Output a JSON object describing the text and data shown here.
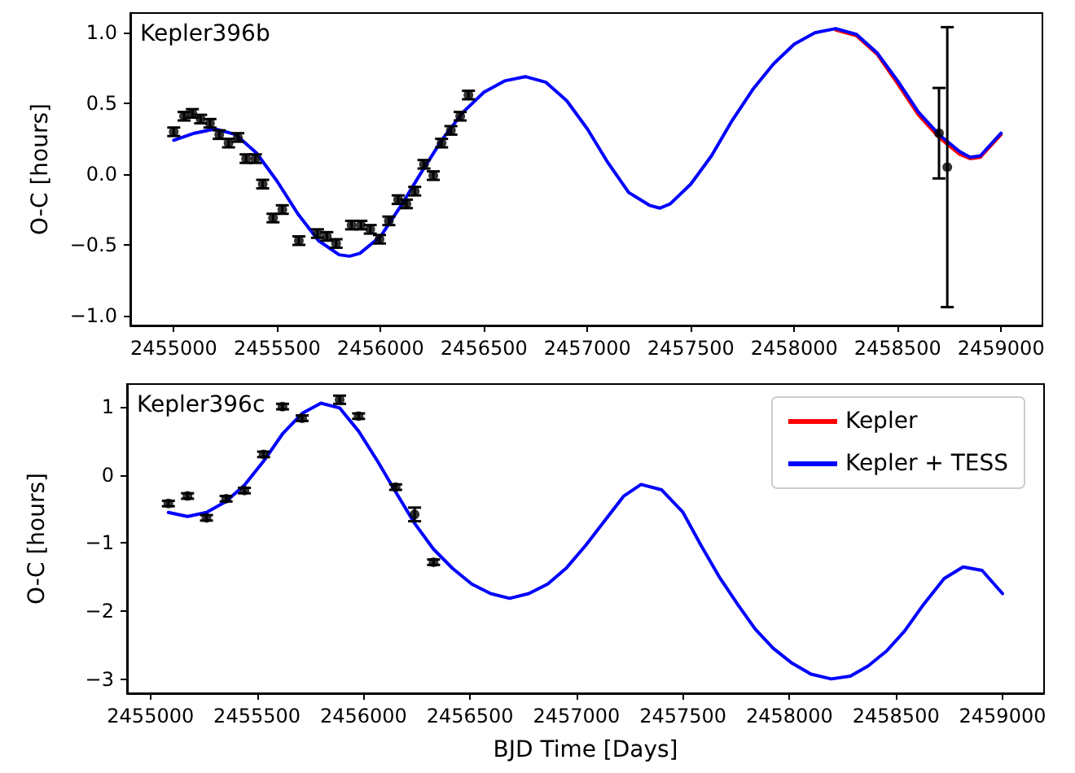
{
  "chart_data": [
    {
      "type": "line",
      "ylabel": "O-C [hours]",
      "annotations": [
        "Kepler396b"
      ],
      "grid": false,
      "legend": false,
      "xlim": [
        2454790,
        2459200
      ],
      "xticks": [
        2455000,
        2455500,
        2456000,
        2456500,
        2457000,
        2457500,
        2458000,
        2458500,
        2459000
      ],
      "ylim": [
        -1.07,
        1.14
      ],
      "yticks": [
        {
          "value": -1,
          "label": "−1.0"
        },
        {
          "value": -0.5,
          "label": "−0.5"
        },
        {
          "value": 0,
          "label": "0.0"
        },
        {
          "value": 0.5,
          "label": "0.5"
        },
        {
          "value": 1,
          "label": "1.0"
        }
      ],
      "series": [
        {
          "type": "line",
          "color": "#ff0000",
          "marker": "none",
          "x": [
            2458200,
            2458300,
            2458400,
            2458500,
            2458600,
            2458700,
            2458800,
            2458850,
            2458900,
            2459000
          ],
          "values": [
            1.02,
            0.98,
            0.85,
            0.64,
            0.42,
            0.26,
            0.14,
            0.11,
            0.12,
            0.28
          ]
        },
        {
          "type": "line",
          "color": "#0000ff",
          "marker": "none",
          "x": [
            2455000,
            2455100,
            2455200,
            2455300,
            2455400,
            2455500,
            2455600,
            2455700,
            2455800,
            2455850,
            2455900,
            2456000,
            2456100,
            2456200,
            2456300,
            2456400,
            2456500,
            2456600,
            2456700,
            2456800,
            2456900,
            2457000,
            2457100,
            2457200,
            2457300,
            2457350,
            2457400,
            2457500,
            2457600,
            2457700,
            2457800,
            2457900,
            2458000,
            2458100,
            2458200,
            2458300,
            2458400,
            2458500,
            2458600,
            2458700,
            2458800,
            2458850,
            2458900,
            2459000
          ],
          "values": [
            0.24,
            0.29,
            0.32,
            0.28,
            0.15,
            -0.05,
            -0.28,
            -0.47,
            -0.57,
            -0.58,
            -0.56,
            -0.44,
            -0.22,
            0.02,
            0.25,
            0.44,
            0.58,
            0.66,
            0.69,
            0.65,
            0.52,
            0.32,
            0.08,
            -0.13,
            -0.22,
            -0.24,
            -0.21,
            -0.07,
            0.13,
            0.38,
            0.6,
            0.78,
            0.92,
            1.0,
            1.03,
            0.99,
            0.86,
            0.66,
            0.44,
            0.28,
            0.16,
            0.12,
            0.13,
            0.29
          ]
        },
        {
          "type": "scatter",
          "color": "#000000",
          "marker": "circle",
          "x": [
            2455000,
            2455050,
            2455090,
            2455130,
            2455175,
            2455220,
            2455265,
            2455310,
            2455350,
            2455395,
            2455430,
            2455480,
            2455525,
            2455605,
            2455695,
            2455740,
            2455785,
            2455860,
            2455905,
            2455950,
            2455995,
            2456040,
            2456085,
            2456125,
            2456165,
            2456210,
            2456255,
            2456295,
            2456340,
            2456385,
            2456425,
            2458700,
            2458740
          ],
          "values": [
            0.3,
            0.41,
            0.43,
            0.39,
            0.36,
            0.28,
            0.22,
            0.26,
            0.11,
            0.11,
            -0.07,
            -0.31,
            -0.25,
            -0.47,
            -0.42,
            -0.44,
            -0.49,
            -0.36,
            -0.36,
            -0.39,
            -0.46,
            -0.33,
            -0.18,
            -0.21,
            -0.12,
            0.07,
            -0.01,
            0.22,
            0.31,
            0.41,
            0.56,
            0.29,
            0.05
          ],
          "errors": [
            0.03,
            0.03,
            0.03,
            0.03,
            0.03,
            0.03,
            0.03,
            0.03,
            0.03,
            0.03,
            0.03,
            0.03,
            0.03,
            0.03,
            0.03,
            0.03,
            0.03,
            0.03,
            0.03,
            0.03,
            0.03,
            0.03,
            0.03,
            0.03,
            0.03,
            0.03,
            0.03,
            0.03,
            0.03,
            0.03,
            0.03,
            0.32,
            0.99
          ]
        }
      ]
    },
    {
      "type": "line",
      "xlabel": "BJD Time [Days]",
      "ylabel": "O-C [hours]",
      "annotations": [
        "Kepler396c"
      ],
      "grid": false,
      "legend": "top right",
      "xlim": [
        2454890,
        2459195
      ],
      "xticks": [
        2455000,
        2455500,
        2456000,
        2456500,
        2457000,
        2457500,
        2458000,
        2458500,
        2459000
      ],
      "ylim": [
        -3.2,
        1.33
      ],
      "yticks": [
        {
          "value": -3,
          "label": "−3"
        },
        {
          "value": -2,
          "label": "−2"
        },
        {
          "value": -1,
          "label": "−1"
        },
        0,
        1
      ],
      "series": [
        {
          "type": "line",
          "name": "Kepler",
          "color": "#ff0000",
          "marker": "none"
        },
        {
          "type": "line",
          "name": "Kepler + TESS",
          "color": "#0000ff",
          "marker": "none",
          "x": [
            2455084,
            2455174,
            2455263,
            2455355,
            2455441,
            2455531,
            2455620,
            2455712,
            2455800,
            2455888,
            2455977,
            2456066,
            2456151,
            2456240,
            2456329,
            2456418,
            2456508,
            2456597,
            2456686,
            2456776,
            2456865,
            2456954,
            2457044,
            2457133,
            2457222,
            2457303,
            2457400,
            2457500,
            2457584,
            2457673,
            2457757,
            2457839,
            2457923,
            2458012,
            2458101,
            2458196,
            2458285,
            2458369,
            2458456,
            2458540,
            2458629,
            2458726,
            2458815,
            2458904,
            2459000
          ],
          "values": [
            -0.55,
            -0.61,
            -0.55,
            -0.39,
            -0.15,
            0.2,
            0.6,
            0.9,
            1.05,
            0.98,
            0.64,
            0.2,
            -0.25,
            -0.71,
            -1.09,
            -1.37,
            -1.6,
            -1.74,
            -1.81,
            -1.74,
            -1.6,
            -1.36,
            -1.03,
            -0.67,
            -0.31,
            -0.14,
            -0.22,
            -0.55,
            -1.03,
            -1.51,
            -1.9,
            -2.26,
            -2.54,
            -2.76,
            -2.92,
            -2.99,
            -2.95,
            -2.8,
            -2.58,
            -2.29,
            -1.9,
            -1.52,
            -1.35,
            -1.4,
            -1.74
          ]
        },
        {
          "type": "scatter",
          "color": "#000000",
          "marker": "circle",
          "x": [
            2455084,
            2455174,
            2455263,
            2455355,
            2455441,
            2455531,
            2455620,
            2455712,
            2455888,
            2455977,
            2456151,
            2456240,
            2456329
          ],
          "values": [
            -0.42,
            -0.31,
            -0.63,
            -0.35,
            -0.23,
            0.3,
            1.0,
            0.83,
            1.1,
            0.86,
            -0.18,
            -0.58,
            -1.28
          ],
          "errors": [
            0.04,
            0.04,
            0.04,
            0.04,
            0.04,
            0.04,
            0.04,
            0.04,
            0.06,
            0.04,
            0.04,
            0.1,
            0.04
          ]
        }
      ]
    }
  ]
}
